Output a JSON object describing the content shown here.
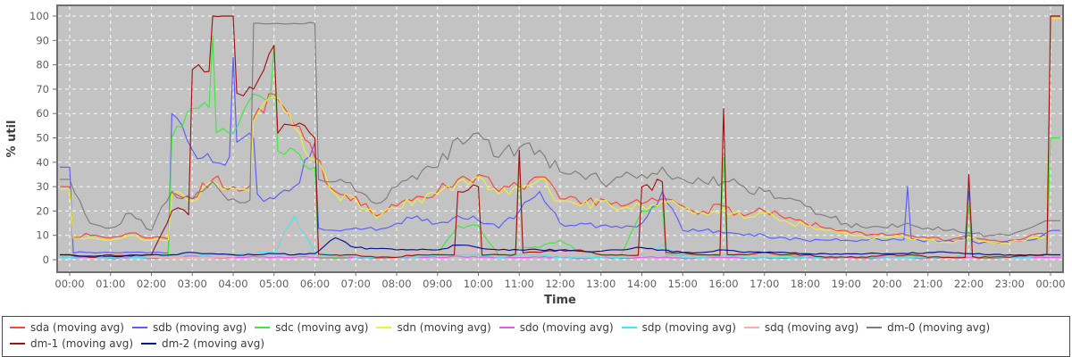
{
  "chart_data": {
    "type": "line",
    "title": "",
    "xlabel": "Time",
    "ylabel": "% util",
    "ylim": [
      0,
      100
    ],
    "y_tick_step": 10,
    "x_tick_labels": [
      "00:00",
      "01:00",
      "02:00",
      "03:00",
      "04:00",
      "05:00",
      "06:00",
      "07:00",
      "08:00",
      "09:00",
      "10:00",
      "11:00",
      "12:00",
      "13:00",
      "14:00",
      "15:00",
      "16:00",
      "17:00",
      "18:00",
      "19:00",
      "20:00",
      "21:00",
      "22:00",
      "23:00",
      "00:00"
    ],
    "x_sample_minutes": 30,
    "grid": "white-dashed",
    "plot_bg": "#c3c3c3",
    "legend_position": "bottom",
    "series": [
      {
        "name": "sda (moving avg)",
        "color": "#ff4433",
        "values": [
          30,
          10,
          9,
          11,
          9,
          28,
          25,
          33,
          30,
          58,
          68,
          55,
          42,
          28,
          26,
          18,
          22,
          26,
          28,
          33,
          35,
          28,
          30,
          34,
          25,
          23,
          25,
          22,
          23,
          25,
          22,
          20,
          22,
          18,
          20,
          17,
          15,
          13,
          12,
          10,
          10,
          10,
          9,
          8,
          10,
          8,
          8,
          10,
          100
        ]
      },
      {
        "name": "sdb (moving avg)",
        "color": "#5c5cff",
        "values": [
          38,
          3,
          3,
          3,
          3,
          60,
          45,
          40,
          83,
          50,
          25,
          30,
          48,
          12,
          13,
          12,
          15,
          18,
          15,
          18,
          16,
          13,
          20,
          28,
          15,
          15,
          14,
          13,
          15,
          28,
          12,
          12,
          11,
          10,
          10,
          9,
          8,
          8,
          8,
          8,
          8,
          30,
          8,
          8,
          28,
          7,
          7,
          8,
          12
        ]
      },
      {
        "name": "sdc (moving avg)",
        "color": "#3fe83f",
        "values": [
          2,
          1,
          1,
          1,
          1,
          50,
          62,
          92,
          52,
          68,
          88,
          45,
          38,
          1,
          1,
          1,
          1,
          2,
          2,
          14,
          14,
          2,
          40,
          5,
          8,
          3,
          2,
          2,
          20,
          24,
          2,
          2,
          42,
          2,
          2,
          2,
          1,
          1,
          1,
          1,
          1,
          2,
          1,
          1,
          22,
          1,
          1,
          2,
          50
        ]
      },
      {
        "name": "sdn (moving avg)",
        "color": "#f0f035",
        "values": [
          29,
          9,
          8,
          10,
          8,
          27,
          24,
          32,
          29,
          57,
          67,
          54,
          41,
          27,
          25,
          17,
          21,
          25,
          27,
          32,
          34,
          27,
          29,
          33,
          24,
          22,
          24,
          21,
          22,
          24,
          21,
          19,
          21,
          17,
          19,
          16,
          14,
          12,
          11,
          9,
          9,
          9,
          8,
          7,
          9,
          7,
          7,
          9,
          99
        ]
      },
      {
        "name": "sdo (moving avg)",
        "color": "#ee55ee",
        "values": [
          1,
          1,
          0.5,
          1,
          0.5,
          1,
          1.5,
          1,
          1,
          1.5,
          1,
          1,
          1,
          0.5,
          1,
          0.5,
          1,
          1,
          1,
          1.5,
          1,
          1,
          1,
          1,
          1,
          0.5,
          1,
          0.5,
          1,
          1,
          0.5,
          1,
          1,
          0.5,
          1,
          0.5,
          1,
          0.5,
          1,
          0.5,
          1,
          1,
          0.5,
          1,
          1,
          0.5,
          1,
          1,
          1
        ]
      },
      {
        "name": "sdp (moving avg)",
        "color": "#45e8e8",
        "values": [
          1,
          1,
          1,
          1,
          1,
          2,
          2,
          2,
          2,
          3,
          3,
          18,
          3,
          2,
          1,
          1,
          1,
          1,
          2,
          2,
          2,
          1,
          2,
          2,
          1,
          1,
          1,
          1,
          2,
          6,
          1,
          1,
          2,
          1,
          1,
          1,
          1,
          1,
          1,
          1,
          1,
          1,
          1,
          1,
          2,
          1,
          1,
          1,
          2
        ]
      },
      {
        "name": "sdq (moving avg)",
        "color": "#ffabab",
        "values": [
          2,
          2,
          2,
          2,
          1,
          1,
          1,
          1,
          1,
          3,
          5,
          15,
          8,
          2,
          2,
          2,
          2,
          3,
          3,
          4,
          5,
          4,
          4,
          4,
          3,
          3,
          3,
          3,
          3,
          4,
          3,
          3,
          3,
          2,
          2,
          2,
          2,
          2,
          2,
          2,
          2,
          2,
          2,
          2,
          2,
          2,
          2,
          2,
          2
        ]
      },
      {
        "name": "dm-0 (moving avg)",
        "color": "#7d7d7d",
        "values": [
          33,
          15,
          13,
          19,
          12,
          28,
          25,
          32,
          25,
          97,
          97,
          97,
          97,
          32,
          28,
          23,
          30,
          33,
          38,
          50,
          52,
          42,
          46,
          45,
          36,
          35,
          32,
          34,
          35,
          38,
          33,
          32,
          32,
          30,
          28,
          25,
          22,
          18,
          15,
          13,
          13,
          15,
          13,
          12,
          11,
          10,
          10,
          13,
          16
        ]
      },
      {
        "name": "dm-1 (moving avg)",
        "color": "#a51212",
        "values": [
          2,
          1,
          2,
          2,
          2,
          20,
          78,
          100,
          100,
          70,
          88,
          55,
          50,
          2,
          2,
          1,
          1,
          2,
          2,
          28,
          30,
          2,
          45,
          3,
          4,
          4,
          2,
          2,
          30,
          32,
          3,
          2,
          62,
          2,
          3,
          2,
          2,
          1,
          1,
          1,
          2,
          2,
          1,
          1,
          35,
          1,
          1,
          2,
          100
        ]
      },
      {
        "name": "dm-2 (moving avg)",
        "color": "#00128c",
        "values": [
          2,
          1.5,
          1.5,
          1.5,
          2,
          2,
          3,
          2.5,
          2,
          2,
          2.5,
          2,
          2.5,
          9,
          5,
          4.5,
          4,
          4,
          4,
          6,
          5,
          4,
          4,
          4,
          4,
          3.5,
          3.5,
          4,
          5,
          4,
          3,
          3,
          4,
          3,
          3,
          3,
          2.5,
          2.5,
          2.5,
          2.5,
          2.5,
          2.5,
          3,
          3,
          2.5,
          2,
          2,
          2,
          2
        ]
      }
    ]
  }
}
